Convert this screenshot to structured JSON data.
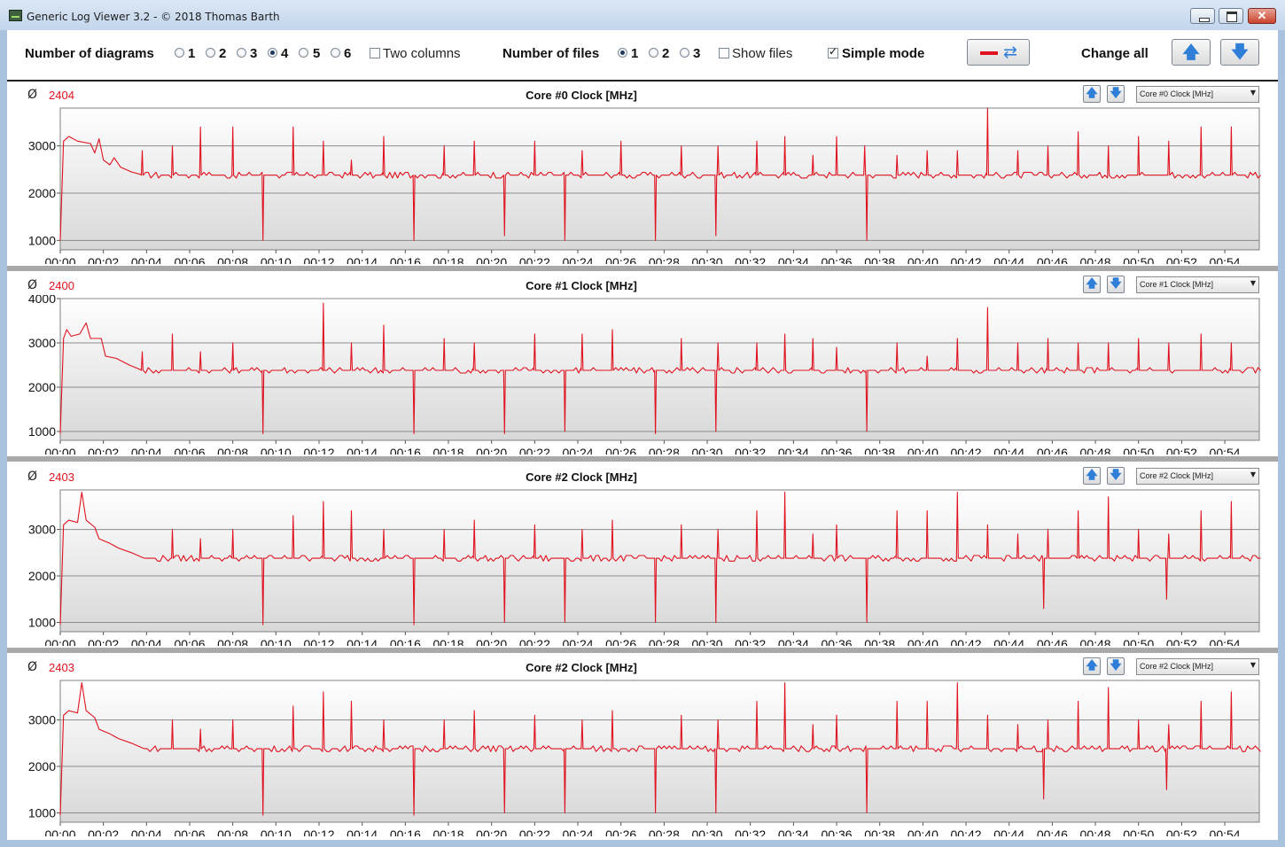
{
  "window": {
    "title": "Generic Log Viewer 3.2 - © 2018 Thomas Barth",
    "close_glyph": "✕"
  },
  "toolbar": {
    "diagrams_label": "Number of diagrams",
    "diagram_options": [
      "1",
      "2",
      "3",
      "4",
      "5",
      "6"
    ],
    "diagrams_selected": "4",
    "two_columns_label": "Two columns",
    "two_columns_checked": false,
    "files_label": "Number of files",
    "file_options": [
      "1",
      "2",
      "3"
    ],
    "files_selected": "1",
    "show_files_label": "Show files",
    "show_files_checked": false,
    "simple_mode_label": "Simple mode",
    "simple_mode_checked": true,
    "change_all_label": "Change all",
    "line_color": "#e0121f",
    "up_glyph": "🡅",
    "down_glyph": "🡇"
  },
  "panels": [
    {
      "avg_symbol": "Ø",
      "avg": "2404",
      "title": "Core #0 Clock [MHz]",
      "select_value": "Core #0 Clock [MHz]",
      "up_glyph": "🡅",
      "down_glyph": "🡇",
      "select_arrow": "▼"
    },
    {
      "avg_symbol": "Ø",
      "avg": "2400",
      "title": "Core #1 Clock [MHz]",
      "select_value": "Core #1 Clock [MHz]",
      "up_glyph": "🡅",
      "down_glyph": "🡇",
      "select_arrow": "▼"
    },
    {
      "avg_symbol": "Ø",
      "avg": "2403",
      "title": "Core #2 Clock [MHz]",
      "select_value": "Core #2 Clock [MHz]",
      "up_glyph": "🡅",
      "down_glyph": "🡇",
      "select_arrow": "▼"
    },
    {
      "avg_symbol": "Ø",
      "avg": "2403",
      "title": "Core #2 Clock [MHz]",
      "select_value": "Core #2 Clock [MHz]",
      "up_glyph": "🡅",
      "down_glyph": "🡇",
      "select_arrow": "▼"
    }
  ],
  "chart_data": [
    {
      "type": "line",
      "title": "Core #0 Clock [MHz]",
      "xlabel": "",
      "ylabel": "",
      "x_ticks": [
        "00:00",
        "00:02",
        "00:04",
        "00:06",
        "00:08",
        "00:10",
        "00:12",
        "00:14",
        "00:16",
        "00:18",
        "00:20",
        "00:22",
        "00:24",
        "00:26",
        "00:28",
        "00:30",
        "00:32",
        "00:34",
        "00:36",
        "00:38",
        "00:40",
        "00:42",
        "00:44",
        "00:46",
        "00:48",
        "00:50",
        "00:52",
        "00:54"
      ],
      "y_ticks": [
        1000,
        2000,
        3000
      ],
      "ylim": [
        800,
        3800
      ],
      "xlim_minutes": [
        0,
        55.6
      ],
      "color": "#e0121f",
      "grid": true,
      "baseline": 2380,
      "warmup": [
        [
          0,
          1000
        ],
        [
          0.15,
          3100
        ],
        [
          0.4,
          3200
        ],
        [
          0.8,
          3100
        ],
        [
          1.4,
          3050
        ],
        [
          1.6,
          2850
        ],
        [
          1.8,
          3150
        ],
        [
          2.0,
          2700
        ],
        [
          2.3,
          2600
        ],
        [
          2.5,
          2750
        ],
        [
          2.8,
          2550
        ],
        [
          3.3,
          2450
        ],
        [
          3.7,
          2400
        ]
      ],
      "spikes_up": [
        [
          2.5,
          3100
        ],
        [
          3.8,
          2900
        ],
        [
          5.2,
          3000
        ],
        [
          6.5,
          3400
        ],
        [
          8.0,
          3400
        ],
        [
          10.8,
          3400
        ],
        [
          12.2,
          3100
        ],
        [
          13.5,
          2700
        ],
        [
          15.0,
          3200
        ],
        [
          17.8,
          3000
        ],
        [
          19.2,
          3100
        ],
        [
          22.0,
          3100
        ],
        [
          24.2,
          2900
        ],
        [
          26.0,
          3100
        ],
        [
          28.8,
          3000
        ],
        [
          30.5,
          3000
        ],
        [
          32.3,
          3100
        ],
        [
          33.6,
          3200
        ],
        [
          34.9,
          2800
        ],
        [
          36.0,
          3200
        ],
        [
          37.3,
          3000
        ],
        [
          38.8,
          2800
        ],
        [
          40.2,
          2900
        ],
        [
          41.6,
          2900
        ],
        [
          43.0,
          3800
        ],
        [
          44.4,
          2900
        ],
        [
          45.8,
          3000
        ],
        [
          47.2,
          3300
        ],
        [
          48.6,
          3000
        ],
        [
          50.0,
          3200
        ],
        [
          51.4,
          3100
        ],
        [
          52.9,
          3400
        ],
        [
          54.3,
          3400
        ]
      ],
      "spikes_down": [
        [
          2.4,
          1000
        ],
        [
          9.4,
          1000
        ],
        [
          16.4,
          1000
        ],
        [
          20.6,
          1100
        ],
        [
          23.4,
          1000
        ],
        [
          27.6,
          1000
        ],
        [
          30.4,
          1100
        ],
        [
          37.4,
          1000
        ]
      ]
    },
    {
      "type": "line",
      "title": "Core #1 Clock [MHz]",
      "xlabel": "",
      "ylabel": "",
      "x_ticks": [
        "00:00",
        "00:02",
        "00:04",
        "00:06",
        "00:08",
        "00:10",
        "00:12",
        "00:14",
        "00:16",
        "00:18",
        "00:20",
        "00:22",
        "00:24",
        "00:26",
        "00:28",
        "00:30",
        "00:32",
        "00:34",
        "00:36",
        "00:38",
        "00:40",
        "00:42",
        "00:44",
        "00:46",
        "00:48",
        "00:50",
        "00:52",
        "00:54"
      ],
      "y_ticks": [
        1000,
        2000,
        3000,
        4000
      ],
      "ylim": [
        800,
        4000
      ],
      "xlim_minutes": [
        0,
        55.6
      ],
      "color": "#e0121f",
      "grid": true,
      "baseline": 2380,
      "warmup": [
        [
          0,
          950
        ],
        [
          0.15,
          3100
        ],
        [
          0.3,
          3300
        ],
        [
          0.5,
          3150
        ],
        [
          0.9,
          3200
        ],
        [
          1.2,
          3450
        ],
        [
          1.4,
          3100
        ],
        [
          1.9,
          3100
        ],
        [
          2.1,
          2700
        ],
        [
          2.6,
          2650
        ],
        [
          3.2,
          2500
        ],
        [
          3.7,
          2400
        ]
      ],
      "spikes_up": [
        [
          2.5,
          3200
        ],
        [
          3.8,
          2800
        ],
        [
          5.2,
          3200
        ],
        [
          6.5,
          2800
        ],
        [
          8.0,
          3000
        ],
        [
          12.2,
          3900
        ],
        [
          13.5,
          3000
        ],
        [
          15.0,
          3400
        ],
        [
          17.8,
          3100
        ],
        [
          19.2,
          3000
        ],
        [
          22.0,
          3200
        ],
        [
          24.2,
          3200
        ],
        [
          25.6,
          3300
        ],
        [
          28.8,
          3100
        ],
        [
          30.5,
          3000
        ],
        [
          32.3,
          3000
        ],
        [
          33.6,
          3200
        ],
        [
          34.9,
          3100
        ],
        [
          36.0,
          2900
        ],
        [
          38.8,
          3000
        ],
        [
          40.2,
          2700
        ],
        [
          41.6,
          3100
        ],
        [
          43.0,
          3800
        ],
        [
          44.4,
          3000
        ],
        [
          45.8,
          3100
        ],
        [
          47.2,
          3000
        ],
        [
          48.6,
          3000
        ],
        [
          50.0,
          3100
        ],
        [
          51.4,
          3000
        ],
        [
          52.9,
          3200
        ],
        [
          54.3,
          3000
        ]
      ],
      "spikes_down": [
        [
          2.4,
          1000
        ],
        [
          9.4,
          950
        ],
        [
          16.4,
          950
        ],
        [
          20.6,
          950
        ],
        [
          23.4,
          1000
        ],
        [
          27.6,
          950
        ],
        [
          30.4,
          1000
        ],
        [
          37.4,
          1000
        ]
      ]
    },
    {
      "type": "line",
      "title": "Core #2 Clock [MHz]",
      "xlabel": "",
      "ylabel": "",
      "x_ticks": [
        "00:00",
        "00:02",
        "00:04",
        "00:06",
        "00:08",
        "00:10",
        "00:12",
        "00:14",
        "00:16",
        "00:18",
        "00:20",
        "00:22",
        "00:24",
        "00:26",
        "00:28",
        "00:30",
        "00:32",
        "00:34",
        "00:36",
        "00:38",
        "00:40",
        "00:42",
        "00:44",
        "00:46",
        "00:48",
        "00:50",
        "00:52",
        "00:54"
      ],
      "y_ticks": [
        1000,
        2000,
        3000
      ],
      "ylim": [
        800,
        3850
      ],
      "xlim_minutes": [
        0,
        55.6
      ],
      "color": "#e0121f",
      "grid": true,
      "baseline": 2380,
      "warmup": [
        [
          0,
          950
        ],
        [
          0.15,
          3100
        ],
        [
          0.4,
          3200
        ],
        [
          0.8,
          3150
        ],
        [
          1.0,
          3800
        ],
        [
          1.2,
          3200
        ],
        [
          1.6,
          3050
        ],
        [
          1.8,
          2800
        ],
        [
          2.3,
          2700
        ],
        [
          2.7,
          2600
        ],
        [
          3.3,
          2500
        ],
        [
          3.8,
          2400
        ]
      ],
      "spikes_up": [
        [
          2.5,
          3100
        ],
        [
          3.8,
          2900
        ],
        [
          5.2,
          3000
        ],
        [
          6.5,
          2800
        ],
        [
          8.0,
          3000
        ],
        [
          10.8,
          3300
        ],
        [
          12.2,
          3600
        ],
        [
          13.5,
          3400
        ],
        [
          15.0,
          3000
        ],
        [
          17.8,
          3000
        ],
        [
          19.2,
          3200
        ],
        [
          22.0,
          3100
        ],
        [
          24.2,
          3000
        ],
        [
          25.6,
          3200
        ],
        [
          28.8,
          3100
        ],
        [
          30.5,
          3000
        ],
        [
          32.3,
          3400
        ],
        [
          33.6,
          3800
        ],
        [
          34.9,
          2900
        ],
        [
          36.0,
          3100
        ],
        [
          38.8,
          3400
        ],
        [
          40.2,
          3400
        ],
        [
          41.6,
          3800
        ],
        [
          43.0,
          3100
        ],
        [
          44.4,
          2900
        ],
        [
          45.8,
          3000
        ],
        [
          47.2,
          3400
        ],
        [
          48.6,
          3700
        ],
        [
          50.0,
          3000
        ],
        [
          51.4,
          2900
        ],
        [
          52.9,
          3400
        ],
        [
          54.3,
          3600
        ]
      ],
      "spikes_down": [
        [
          2.4,
          1000
        ],
        [
          9.4,
          950
        ],
        [
          16.4,
          950
        ],
        [
          20.6,
          1000
        ],
        [
          23.4,
          1000
        ],
        [
          27.6,
          1000
        ],
        [
          30.4,
          1000
        ],
        [
          37.4,
          1000
        ],
        [
          45.6,
          1300
        ],
        [
          51.3,
          1500
        ]
      ]
    },
    {
      "type": "line",
      "title": "Core #2 Clock [MHz]",
      "xlabel": "",
      "ylabel": "",
      "x_ticks": [
        "00:00",
        "00:02",
        "00:04",
        "00:06",
        "00:08",
        "00:10",
        "00:12",
        "00:14",
        "00:16",
        "00:18",
        "00:20",
        "00:22",
        "00:24",
        "00:26",
        "00:28",
        "00:30",
        "00:32",
        "00:34",
        "00:36",
        "00:38",
        "00:40",
        "00:42",
        "00:44",
        "00:46",
        "00:48",
        "00:50",
        "00:52",
        "00:54"
      ],
      "y_ticks": [
        1000,
        2000,
        3000
      ],
      "ylim": [
        800,
        3850
      ],
      "xlim_minutes": [
        0,
        55.6
      ],
      "color": "#e0121f",
      "grid": true,
      "baseline": 2380,
      "warmup": [
        [
          0,
          950
        ],
        [
          0.15,
          3100
        ],
        [
          0.4,
          3200
        ],
        [
          0.8,
          3150
        ],
        [
          1.0,
          3800
        ],
        [
          1.2,
          3200
        ],
        [
          1.6,
          3050
        ],
        [
          1.8,
          2800
        ],
        [
          2.3,
          2700
        ],
        [
          2.7,
          2600
        ],
        [
          3.3,
          2500
        ],
        [
          3.8,
          2400
        ]
      ],
      "spikes_up": [
        [
          2.5,
          3100
        ],
        [
          3.8,
          2900
        ],
        [
          5.2,
          3000
        ],
        [
          6.5,
          2800
        ],
        [
          8.0,
          3000
        ],
        [
          10.8,
          3300
        ],
        [
          12.2,
          3600
        ],
        [
          13.5,
          3400
        ],
        [
          15.0,
          3000
        ],
        [
          17.8,
          3000
        ],
        [
          19.2,
          3200
        ],
        [
          22.0,
          3100
        ],
        [
          24.2,
          3000
        ],
        [
          25.6,
          3200
        ],
        [
          28.8,
          3100
        ],
        [
          30.5,
          3000
        ],
        [
          32.3,
          3400
        ],
        [
          33.6,
          3800
        ],
        [
          34.9,
          2900
        ],
        [
          36.0,
          3100
        ],
        [
          38.8,
          3400
        ],
        [
          40.2,
          3400
        ],
        [
          41.6,
          3800
        ],
        [
          43.0,
          3100
        ],
        [
          44.4,
          2900
        ],
        [
          45.8,
          3000
        ],
        [
          47.2,
          3400
        ],
        [
          48.6,
          3700
        ],
        [
          50.0,
          3000
        ],
        [
          51.4,
          2900
        ],
        [
          52.9,
          3400
        ],
        [
          54.3,
          3600
        ]
      ],
      "spikes_down": [
        [
          2.4,
          1000
        ],
        [
          9.4,
          950
        ],
        [
          16.4,
          950
        ],
        [
          20.6,
          1000
        ],
        [
          23.4,
          1000
        ],
        [
          27.6,
          1000
        ],
        [
          30.4,
          1000
        ],
        [
          37.4,
          1000
        ],
        [
          45.6,
          1300
        ],
        [
          51.3,
          1500
        ]
      ]
    }
  ]
}
